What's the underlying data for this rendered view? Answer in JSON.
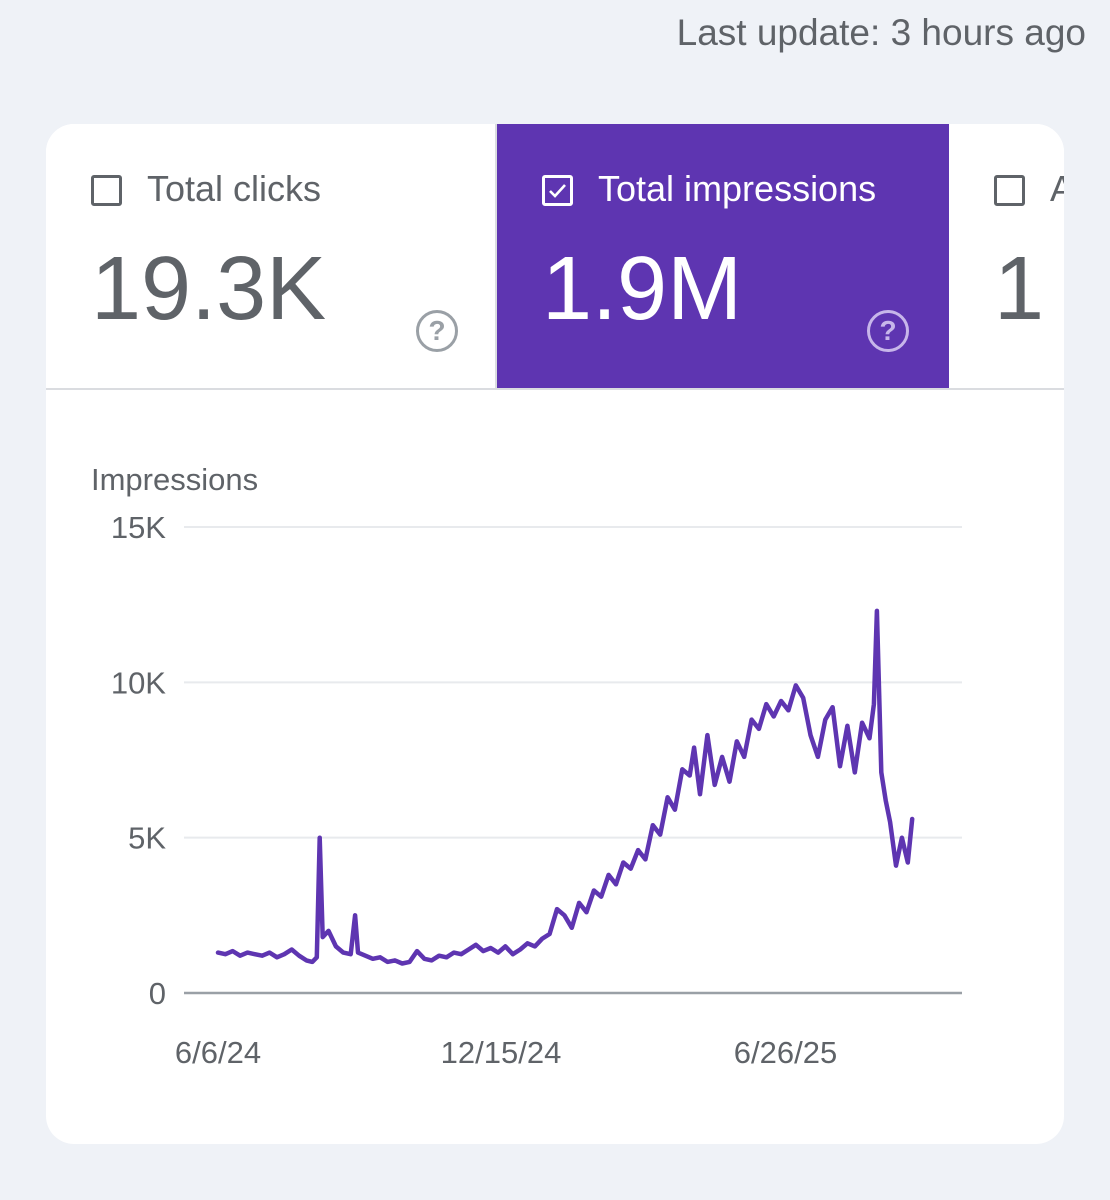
{
  "header": {
    "last_update": "Last update: 3 hours ago"
  },
  "tabs": [
    {
      "label": "Total clicks",
      "value": "19.3K",
      "checked": false,
      "help": "?"
    },
    {
      "label": "Total impressions",
      "value": "1.9M",
      "checked": true,
      "help": "?"
    },
    {
      "label": "A",
      "value": "1",
      "checked": false
    }
  ],
  "colors": {
    "accent": "#5e35b1",
    "line": "#5e35b1",
    "grid": "#e8eaed",
    "axis": "#9aa0a6"
  },
  "chart_data": {
    "type": "line",
    "ylabel": "Impressions",
    "y_ticks": [
      "0",
      "5K",
      "10K",
      "15K"
    ],
    "y_tick_values": [
      0,
      5000,
      10000,
      15000
    ],
    "x_ticks": [
      "6/6/24",
      "12/15/24",
      "6/26/25"
    ],
    "x_tick_dates": [
      "2024-06-06",
      "2024-12-15",
      "2025-06-26"
    ],
    "ylim": [
      0,
      15000
    ],
    "xlim": [
      "2024-06-06",
      "2025-09-30"
    ],
    "grid": true,
    "series": [
      {
        "points": [
          [
            "2024-06-06",
            1300
          ],
          [
            "2024-06-11",
            1250
          ],
          [
            "2024-06-16",
            1350
          ],
          [
            "2024-06-21",
            1200
          ],
          [
            "2024-06-26",
            1300
          ],
          [
            "2024-07-01",
            1250
          ],
          [
            "2024-07-06",
            1200
          ],
          [
            "2024-07-11",
            1300
          ],
          [
            "2024-07-16",
            1150
          ],
          [
            "2024-07-21",
            1250
          ],
          [
            "2024-07-26",
            1400
          ],
          [
            "2024-07-31",
            1200
          ],
          [
            "2024-08-05",
            1050
          ],
          [
            "2024-08-09",
            1000
          ],
          [
            "2024-08-12",
            1150
          ],
          [
            "2024-08-14",
            5000
          ],
          [
            "2024-08-16",
            1800
          ],
          [
            "2024-08-20",
            2000
          ],
          [
            "2024-08-25",
            1500
          ],
          [
            "2024-08-30",
            1300
          ],
          [
            "2024-09-04",
            1250
          ],
          [
            "2024-09-07",
            2500
          ],
          [
            "2024-09-09",
            1300
          ],
          [
            "2024-09-14",
            1200
          ],
          [
            "2024-09-19",
            1100
          ],
          [
            "2024-09-24",
            1150
          ],
          [
            "2024-09-29",
            1000
          ],
          [
            "2024-10-04",
            1050
          ],
          [
            "2024-10-09",
            950
          ],
          [
            "2024-10-14",
            1000
          ],
          [
            "2024-10-19",
            1350
          ],
          [
            "2024-10-24",
            1100
          ],
          [
            "2024-10-29",
            1050
          ],
          [
            "2024-11-03",
            1200
          ],
          [
            "2024-11-08",
            1150
          ],
          [
            "2024-11-13",
            1300
          ],
          [
            "2024-11-18",
            1250
          ],
          [
            "2024-11-23",
            1400
          ],
          [
            "2024-11-28",
            1550
          ],
          [
            "2024-12-03",
            1350
          ],
          [
            "2024-12-08",
            1450
          ],
          [
            "2024-12-13",
            1300
          ],
          [
            "2024-12-18",
            1500
          ],
          [
            "2024-12-23",
            1250
          ],
          [
            "2024-12-28",
            1400
          ],
          [
            "2025-01-02",
            1600
          ],
          [
            "2025-01-07",
            1500
          ],
          [
            "2025-01-12",
            1750
          ],
          [
            "2025-01-17",
            1900
          ],
          [
            "2025-01-22",
            2700
          ],
          [
            "2025-01-27",
            2500
          ],
          [
            "2025-02-01",
            2100
          ],
          [
            "2025-02-06",
            2900
          ],
          [
            "2025-02-11",
            2600
          ],
          [
            "2025-02-16",
            3300
          ],
          [
            "2025-02-21",
            3100
          ],
          [
            "2025-02-26",
            3800
          ],
          [
            "2025-03-03",
            3500
          ],
          [
            "2025-03-08",
            4200
          ],
          [
            "2025-03-13",
            4000
          ],
          [
            "2025-03-18",
            4600
          ],
          [
            "2025-03-23",
            4300
          ],
          [
            "2025-03-28",
            5400
          ],
          [
            "2025-04-02",
            5100
          ],
          [
            "2025-04-07",
            6300
          ],
          [
            "2025-04-12",
            5900
          ],
          [
            "2025-04-17",
            7200
          ],
          [
            "2025-04-22",
            7000
          ],
          [
            "2025-04-25",
            7900
          ],
          [
            "2025-04-29",
            6400
          ],
          [
            "2025-05-04",
            8300
          ],
          [
            "2025-05-09",
            6700
          ],
          [
            "2025-05-14",
            7600
          ],
          [
            "2025-05-19",
            6800
          ],
          [
            "2025-05-24",
            8100
          ],
          [
            "2025-05-29",
            7600
          ],
          [
            "2025-06-03",
            8800
          ],
          [
            "2025-06-08",
            8500
          ],
          [
            "2025-06-13",
            9300
          ],
          [
            "2025-06-18",
            8900
          ],
          [
            "2025-06-23",
            9400
          ],
          [
            "2025-06-28",
            9100
          ],
          [
            "2025-07-03",
            9900
          ],
          [
            "2025-07-08",
            9500
          ],
          [
            "2025-07-13",
            8300
          ],
          [
            "2025-07-18",
            7600
          ],
          [
            "2025-07-23",
            8800
          ],
          [
            "2025-07-28",
            9200
          ],
          [
            "2025-08-02",
            7300
          ],
          [
            "2025-08-07",
            8600
          ],
          [
            "2025-08-12",
            7100
          ],
          [
            "2025-08-17",
            8700
          ],
          [
            "2025-08-22",
            8200
          ],
          [
            "2025-08-25",
            9300
          ],
          [
            "2025-08-27",
            12300
          ],
          [
            "2025-08-30",
            7100
          ],
          [
            "2025-09-02",
            6200
          ],
          [
            "2025-09-05",
            5500
          ],
          [
            "2025-09-09",
            4100
          ],
          [
            "2025-09-13",
            5000
          ],
          [
            "2025-09-17",
            4200
          ],
          [
            "2025-09-20",
            5600
          ]
        ]
      }
    ]
  }
}
